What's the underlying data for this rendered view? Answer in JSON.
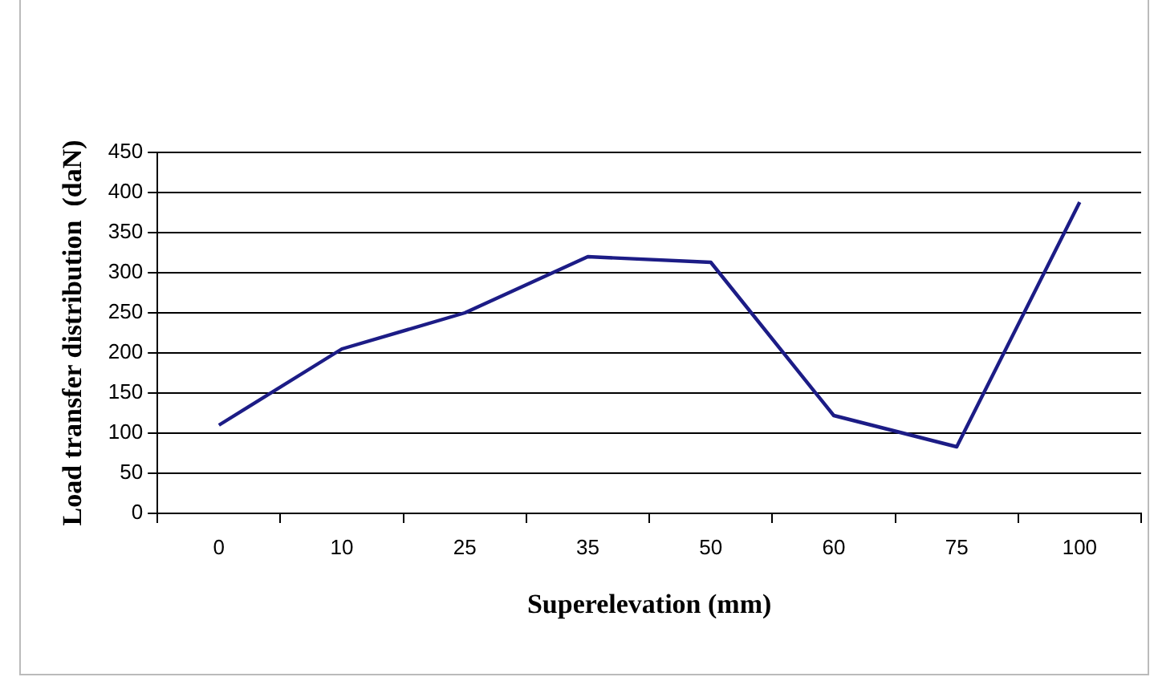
{
  "chart_data": {
    "type": "line",
    "xlabel": "Superelevation (mm)",
    "ylabel": "Load transfer distribution  (daN)",
    "categories": [
      "0",
      "10",
      "25",
      "35",
      "50",
      "60",
      "75",
      "100"
    ],
    "series": [
      {
        "color": "#1c1c86",
        "values": [
          110,
          205,
          250,
          320,
          313,
          122,
          83,
          388
        ]
      }
    ],
    "ylim": [
      0,
      450
    ],
    "yticks": [
      0,
      50,
      100,
      150,
      200,
      250,
      300,
      350,
      400,
      450
    ],
    "grid": "y",
    "legend": false,
    "marker": "none",
    "line_style": "solid"
  }
}
